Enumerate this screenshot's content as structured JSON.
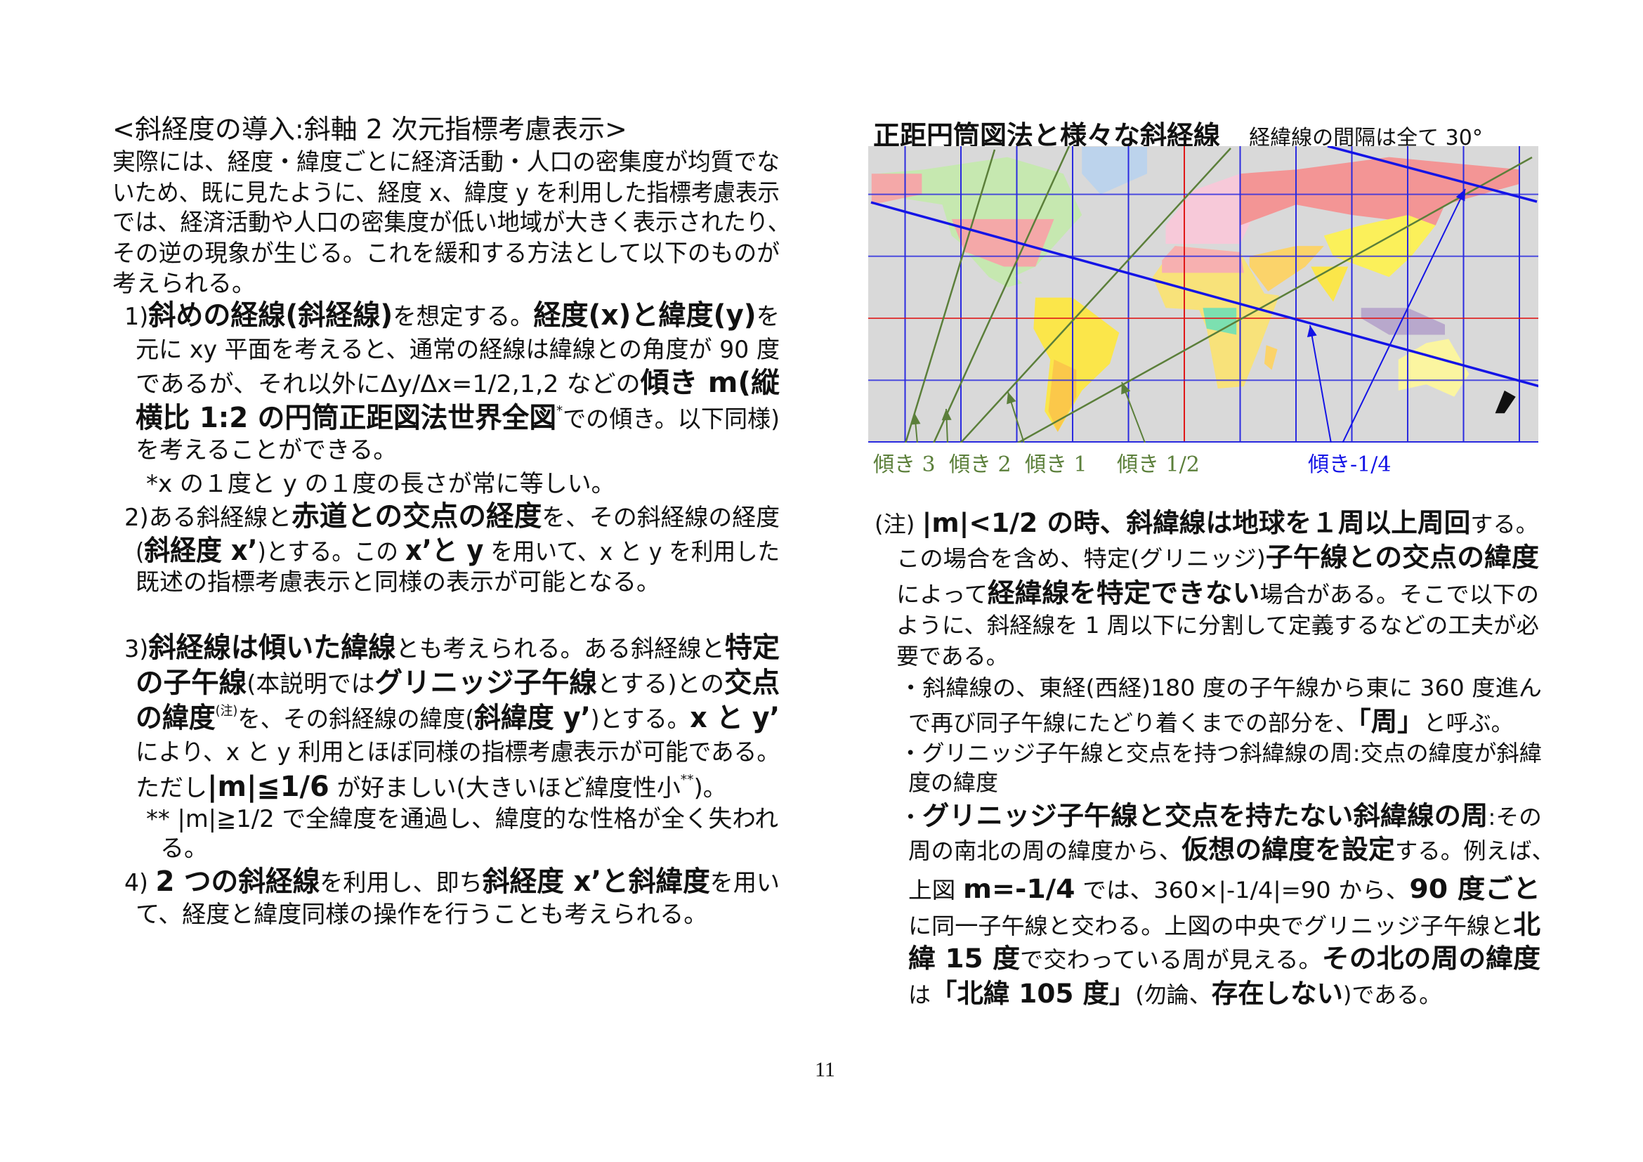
{
  "left": {
    "title": "<斜経度の導入:斜軸 2 次元指標考慮表示>",
    "lines": [
      [
        {
          "t": "実際には、経度・緯度ごとに経済活動・人口の密集度が均質でな"
        }
      ],
      [
        {
          "t": "いため、既に見たように、経度 x、緯度 y を利用した指標考慮表示"
        }
      ],
      [
        {
          "t": "では、経済活動や人口の密集度が低い地域が大きく表示されたり、"
        }
      ],
      [
        {
          "t": "その逆の現象が生じる。これを緩和する方法として以下のものが"
        }
      ],
      [
        {
          "t": "考えられる。"
        }
      ],
      [
        {
          "t": "1)"
        },
        {
          "t": "斜めの経線(斜経線)",
          "b": true
        },
        {
          "t": "を想定する。"
        },
        {
          "t": "経度(x)と緯度(y)",
          "b": true
        },
        {
          "t": "を"
        }
      ],
      [
        {
          "t": "元に xy 平面を考えると、通常の経線は緯線との角度が 90 度"
        }
      ],
      [
        {
          "t": "であるが、それ以外にΔy/Δx=1/2,1,2 などの"
        },
        {
          "t": "傾き m(縦",
          "b": true
        }
      ],
      [
        {
          "t": "横比 1:2 の円筒正距図法世界全図",
          "b": true
        },
        {
          "t": "*",
          "sup": true
        },
        {
          "t": "での傾き。以下同様)"
        }
      ],
      [
        {
          "t": "を考えることができる。"
        }
      ],
      [
        {
          "t": "*x の１度と y の１度の長さが常に等しい。"
        }
      ],
      [
        {
          "t": "2)ある斜経線と"
        },
        {
          "t": "赤道との交点の経度",
          "b": true
        },
        {
          "t": "を、その斜経線の経度"
        }
      ],
      [
        {
          "t": "("
        },
        {
          "t": "斜経度 x’",
          "b": true
        },
        {
          "t": ")とする。この "
        },
        {
          "t": "x’と y",
          "b": true
        },
        {
          "t": " を用いて、x と y を利用した"
        }
      ],
      [
        {
          "t": "既述の指標考慮表示と同様の表示が可能となる。"
        }
      ],
      [
        {
          "t": "3)"
        },
        {
          "t": "斜経線は傾いた緯線",
          "b": true
        },
        {
          "t": "とも考えられる。ある斜経線と"
        },
        {
          "t": "特定",
          "b": true
        }
      ],
      [
        {
          "t": "の子午線",
          "b": true
        },
        {
          "t": "(本説明では"
        },
        {
          "t": "グリニッジ子午線",
          "b": true
        },
        {
          "t": "とする)との"
        },
        {
          "t": "交点",
          "b": true
        }
      ],
      [
        {
          "t": "の緯度",
          "b": true
        },
        {
          "t": "(注)",
          "sup": true
        },
        {
          "t": "を、その斜経線の緯度("
        },
        {
          "t": "斜緯度 y’",
          "b": true
        },
        {
          "t": ")とする。"
        },
        {
          "t": "x と y’",
          "b": true
        }
      ],
      [
        {
          "t": "により、x と y 利用とほぼ同様の指標考慮表示が可能である。"
        }
      ],
      [
        {
          "t": "ただし"
        },
        {
          "t": "|m|≦1/6",
          "b": true
        },
        {
          "t": " が好ましい(大きいほど緯度性小"
        },
        {
          "t": "**",
          "sup": true
        },
        {
          "t": ")。"
        }
      ],
      [
        {
          "t": "** |m|≧1/2 で全緯度を通過し、緯度的な性格が全く失われ"
        }
      ],
      [
        {
          "t": "る。"
        }
      ],
      [
        {
          "t": "4) "
        },
        {
          "t": "2 つの斜経線",
          "b": true
        },
        {
          "t": "を利用し、即ち"
        },
        {
          "t": "斜経度 x’と斜緯度",
          "b": true
        },
        {
          "t": "を用い"
        }
      ],
      [
        {
          "t": "て、経度と緯度同様の操作を行うことも考えられる。"
        }
      ]
    ]
  },
  "right": {
    "title": "正距円筒図法と様々な斜経線",
    "subtitle": "経緯線の間隔は全て 30°",
    "map": {
      "labels": [
        "傾き 3",
        "傾き 2",
        "傾き 1",
        "傾き 1/2",
        "傾き-1/4"
      ],
      "colors": {
        "oblique_positive": "#5b7f3a",
        "oblique_negative": "#1414e6",
        "grid": "#2a2ae0",
        "greenwich_equator": "#e01818",
        "ocean": "#d9d9d9"
      }
    },
    "lines": [
      [
        {
          "t": "(注) "
        },
        {
          "t": "|m|<1/2 の時、斜緯線は地球を１周以上周回",
          "b": true
        },
        {
          "t": "する。"
        }
      ],
      [
        {
          "t": "この場合を含め、特定(グリニッジ)"
        },
        {
          "t": "子午線との交点の緯度",
          "b": true
        }
      ],
      [
        {
          "t": "によって"
        },
        {
          "t": "経緯線を特定できない",
          "b": true
        },
        {
          "t": "場合がある。そこで以下の"
        }
      ],
      [
        {
          "t": "ように、斜経線を 1 周以下に分割して定義するなどの工夫が必"
        }
      ],
      [
        {
          "t": "要である。"
        }
      ],
      [
        {
          "t": "・斜緯線の、東経(西経)180 度の子午線から東に 360 度進ん"
        }
      ],
      [
        {
          "t": "で再び同子午線にたどり着くまでの部分を、"
        },
        {
          "t": "「周」",
          "b": true
        },
        {
          "t": "と呼ぶ。"
        }
      ],
      [
        {
          "t": "・グリニッジ子午線と交点を持つ斜緯線の周:交点の緯度が斜緯"
        }
      ],
      [
        {
          "t": "度の緯度"
        }
      ],
      [
        {
          "t": "・"
        },
        {
          "t": "グリニッジ子午線と交点を持たない斜緯線の周",
          "b": true
        },
        {
          "t": ":その"
        }
      ],
      [
        {
          "t": "周の南北の周の緯度から、"
        },
        {
          "t": "仮想の緯度を設定",
          "b": true
        },
        {
          "t": "する。例えば、"
        }
      ],
      [
        {
          "t": "上図 "
        },
        {
          "t": "m=-1/4",
          "b": true
        },
        {
          "t": " では、360×|-1/4|=90 から、"
        },
        {
          "t": "90 度ごと",
          "b": true
        }
      ],
      [
        {
          "t": "に同一子午線と交わる。上図の中央でグリニッジ子午線と"
        },
        {
          "t": "北",
          "b": true
        }
      ],
      [
        {
          "t": "緯 15 度",
          "b": true
        },
        {
          "t": "で交わっている周が見える。"
        },
        {
          "t": "その北の周の緯度",
          "b": true
        }
      ],
      [
        {
          "t": "は"
        },
        {
          "t": "「北緯 105 度」",
          "b": true
        },
        {
          "t": "(勿論、"
        },
        {
          "t": "存在しない",
          "b": true
        },
        {
          "t": ")である。"
        }
      ]
    ]
  },
  "page_number": "11"
}
